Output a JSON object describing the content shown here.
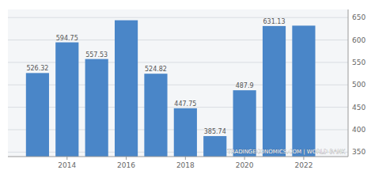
{
  "chart_data": {
    "type": "bar",
    "x": [
      2013,
      2014,
      2015,
      2016,
      2017,
      2018,
      2019,
      2020,
      2021,
      2022
    ],
    "values": [
      526.32,
      594.75,
      557.53,
      644.0,
      524.82,
      447.75,
      385.74,
      487.9,
      631.13,
      632.0
    ],
    "value_labels": [
      "526.32",
      "594.75",
      "557.53",
      null,
      "524.82",
      "447.75",
      "385.74",
      "487.9",
      "631.13",
      null
    ],
    "data_labels": true,
    "color": "#4a86c8",
    "xlim": [
      2012.0,
      2023.5
    ],
    "xticks": [
      2014,
      2016,
      2018,
      2020,
      2022
    ],
    "ylim": [
      340,
      668
    ],
    "yticks": [
      350,
      400,
      450,
      500,
      550,
      600,
      650
    ],
    "grid": true,
    "annotations": [
      "TRADINGECONOMICS.COM | WORLD BANK"
    ]
  }
}
